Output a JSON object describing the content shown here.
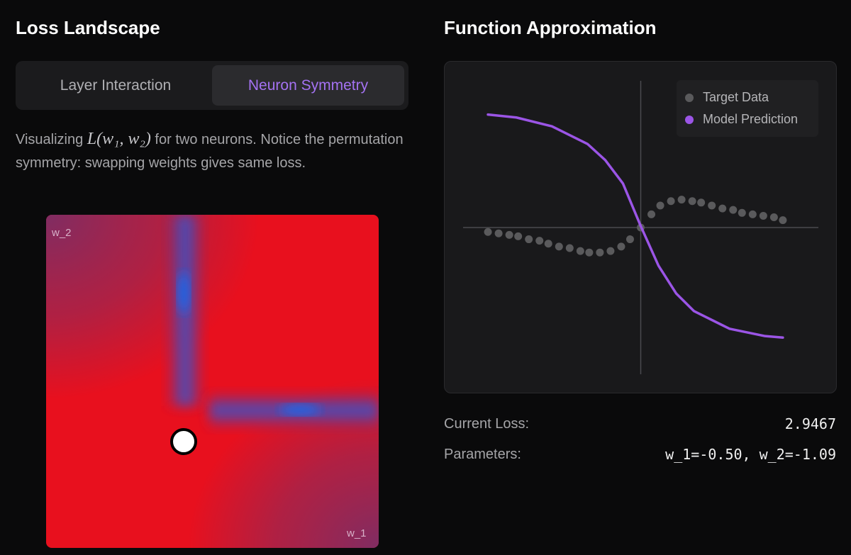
{
  "loss_landscape": {
    "title": "Loss Landscape",
    "tabs": [
      "Layer Interaction",
      "Neuron Symmetry"
    ],
    "description": {
      "prefix": "Visualizing",
      "formula": "L(w₁, w₂)",
      "suffix": "for two neurons. Notice the permutation symmetry: swapping weights gives same loss."
    },
    "heatmap": {
      "y_label": "w_2",
      "x_label": "w_1"
    }
  },
  "function_approximation": {
    "title": "Function Approximation"
  },
  "chart_data": {
    "type": "scatter",
    "xlim": [
      -1,
      1
    ],
    "ylim": [
      -1,
      1
    ],
    "legend": "upper right",
    "series": [
      {
        "name": "Target Data",
        "type": "scatter",
        "color": "#5a5a5c",
        "x": [
          -0.86,
          -0.8,
          -0.74,
          -0.69,
          -0.63,
          -0.57,
          -0.52,
          -0.46,
          -0.4,
          -0.34,
          -0.29,
          -0.23,
          -0.17,
          -0.11,
          -0.06,
          0.0,
          0.06,
          0.11,
          0.17,
          0.23,
          0.29,
          0.34,
          0.4,
          0.46,
          0.52,
          0.57,
          0.63,
          0.69,
          0.75,
          0.8
        ],
        "values": [
          -0.03,
          -0.04,
          -0.05,
          -0.06,
          -0.08,
          -0.09,
          -0.11,
          -0.13,
          -0.14,
          -0.16,
          -0.17,
          -0.17,
          -0.16,
          -0.13,
          -0.08,
          0.0,
          0.09,
          0.15,
          0.18,
          0.19,
          0.18,
          0.17,
          0.15,
          0.13,
          0.12,
          0.1,
          0.09,
          0.08,
          0.07,
          0.05
        ]
      },
      {
        "name": "Model Prediction",
        "type": "line",
        "color": "#9b55e6",
        "x": [
          -0.86,
          -0.7,
          -0.5,
          -0.3,
          -0.2,
          -0.1,
          0,
          0.1,
          0.2,
          0.3,
          0.5,
          0.7,
          0.8
        ],
        "values": [
          0.77,
          0.75,
          0.69,
          0.57,
          0.46,
          0.3,
          0.01,
          -0.26,
          -0.45,
          -0.57,
          -0.69,
          -0.74,
          -0.75
        ]
      }
    ]
  },
  "stats": {
    "loss_label": "Current Loss:",
    "loss_value": "2.9467",
    "params_label": "Parameters:",
    "params_value": "w_1=-0.50, w_2=-1.09"
  }
}
